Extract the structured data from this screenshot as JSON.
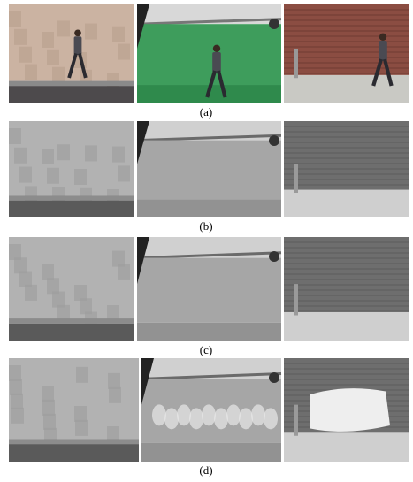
{
  "figure": {
    "rows": [
      {
        "label": "(a)"
      },
      {
        "label": "(b)"
      },
      {
        "label": "(c)"
      },
      {
        "label": "(d)"
      }
    ]
  }
}
